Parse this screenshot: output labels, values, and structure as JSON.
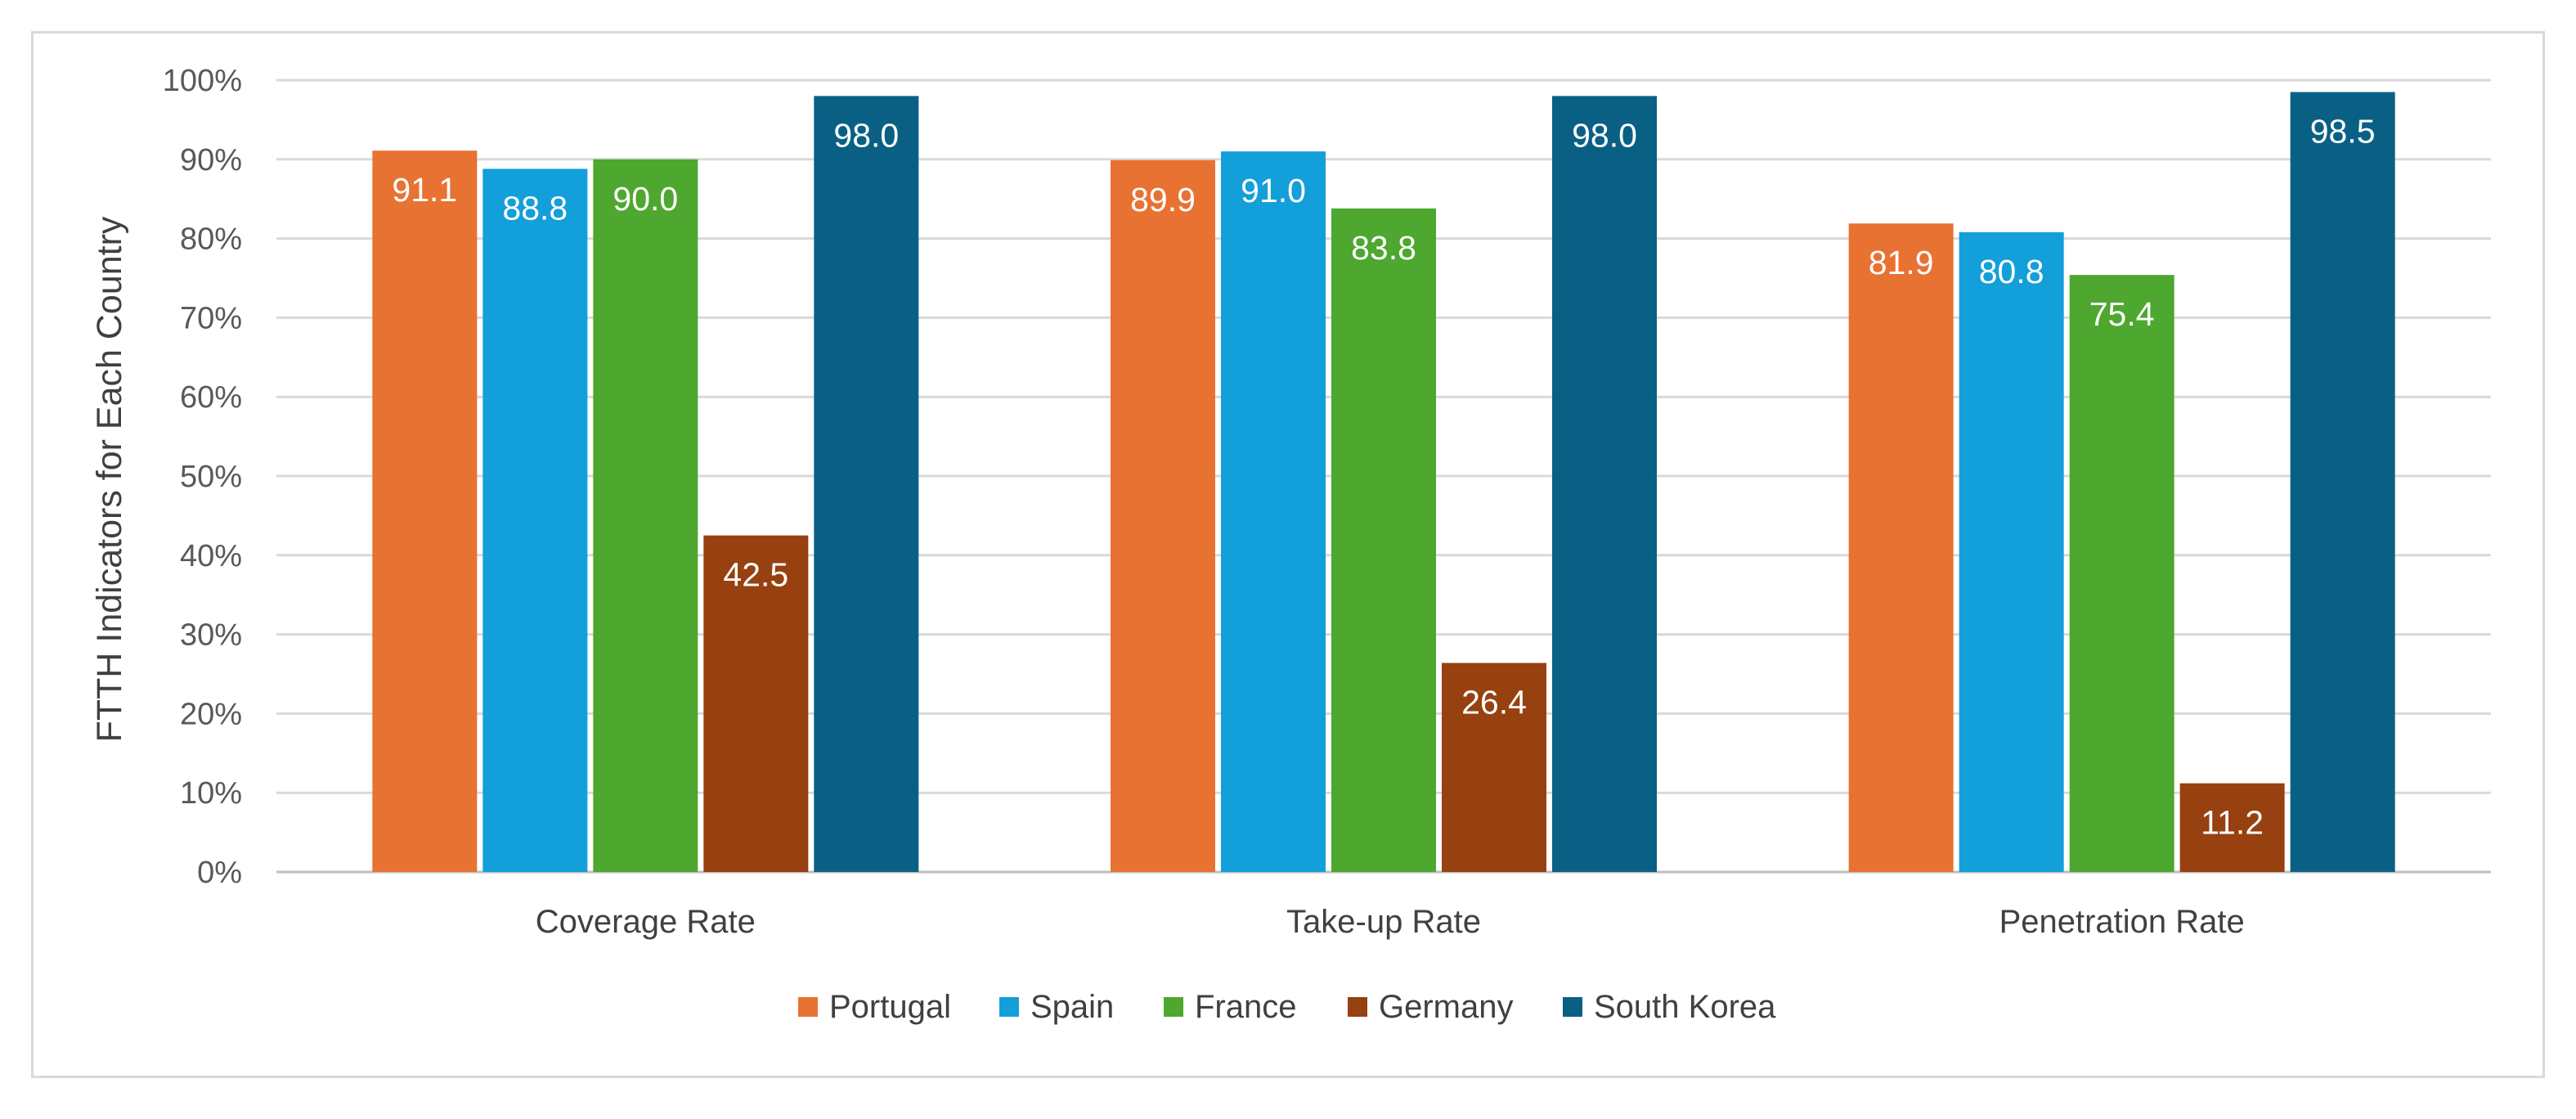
{
  "chart_data": {
    "type": "bar",
    "title": "",
    "xlabel": "",
    "ylabel": "FTTH Indicators for Each Country",
    "categories": [
      "Coverage Rate",
      "Take-up Rate",
      "Penetration Rate"
    ],
    "series": [
      {
        "name": "Portugal",
        "color": "#E87232",
        "values": [
          91.1,
          89.9,
          81.9
        ]
      },
      {
        "name": "Spain",
        "color": "#139FDA",
        "values": [
          88.8,
          91.0,
          80.8
        ]
      },
      {
        "name": "France",
        "color": "#4EA72E",
        "values": [
          90.0,
          83.8,
          75.4
        ]
      },
      {
        "name": "Germany",
        "color": "#974010",
        "values": [
          42.5,
          26.4,
          11.2
        ]
      },
      {
        "name": "South Korea",
        "color": "#0A6084",
        "values": [
          98.0,
          98.0,
          98.5
        ]
      }
    ],
    "data_labels": [
      [
        "91.1",
        "89.9",
        "81.9"
      ],
      [
        "88.8",
        "91.0",
        "80.8"
      ],
      [
        "90.0",
        "83.8",
        "75.4"
      ],
      [
        "42.5",
        "26.4",
        "11.2"
      ],
      [
        "98.0",
        "98.0",
        "98.5"
      ]
    ],
    "ylim": [
      0,
      100
    ],
    "yticks": [
      0,
      10,
      20,
      30,
      40,
      50,
      60,
      70,
      80,
      90,
      100
    ],
    "ytick_labels": [
      "0%",
      "10%",
      "20%",
      "30%",
      "40%",
      "50%",
      "60%",
      "70%",
      "80%",
      "90%",
      "100%"
    ],
    "grid": true,
    "legend_position": "bottom",
    "gridline_color": "#d9d9d9",
    "axis_color": "#bfbfbf"
  }
}
